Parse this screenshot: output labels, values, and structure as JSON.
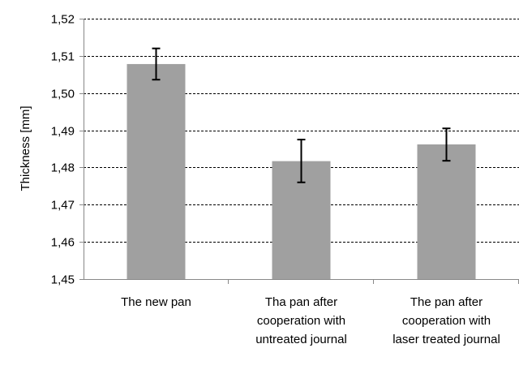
{
  "chart_data": {
    "type": "bar",
    "title": "",
    "xlabel": "",
    "ylabel": "Thickness [mm]",
    "ylim": [
      1.45,
      1.52
    ],
    "yticks": [
      "1,45",
      "1,46",
      "1,47",
      "1,48",
      "1,49",
      "1,50",
      "1,51",
      "1,52"
    ],
    "grid": "horizontal dashed",
    "bar_color": "#a0a0a0",
    "categories": [
      [
        "The new pan"
      ],
      [
        "Tha pan after",
        "cooperation with",
        "untreated journal"
      ],
      [
        "The pan after",
        "cooperation with",
        "laser treated journal"
      ]
    ],
    "values": [
      1.5078,
      1.4817,
      1.4862
    ],
    "errors": [
      [
        1.5036,
        1.512
      ],
      [
        1.476,
        1.4875
      ],
      [
        1.4818,
        1.4905
      ]
    ]
  }
}
